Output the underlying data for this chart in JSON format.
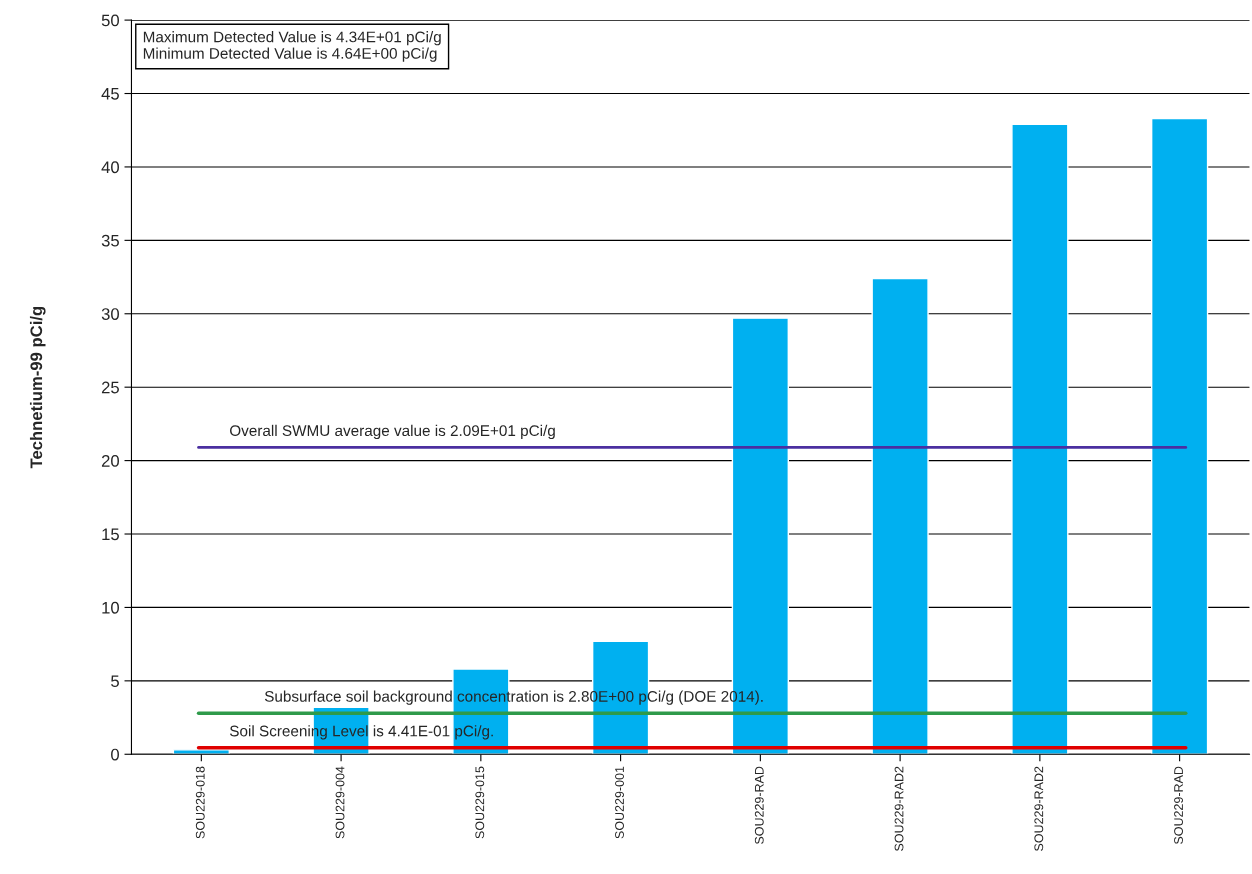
{
  "chart_data": {
    "type": "bar",
    "ylabel": "Technetium-99 pCi/g",
    "categories": [
      "SOU229-018",
      "SOU229-004",
      "SOU229-015",
      "SOU229-001",
      "SOU229-RAD",
      "SOU229-RAD2",
      "SOU229-RAD2",
      "SOU229-RAD"
    ],
    "values": [
      0.3,
      3.2,
      5.8,
      7.7,
      29.7,
      32.4,
      42.9,
      43.3
    ],
    "color": "#00b0f0",
    "ylim": [
      0,
      50
    ],
    "yticks": [
      0,
      5,
      10,
      15,
      20,
      25,
      30,
      35,
      40,
      45,
      50
    ],
    "grid": "y",
    "legend": false,
    "ref_lines": [
      {
        "axis": "y",
        "value": 20.9,
        "label": "Overall SWMU average value is 2.09E+01 pCi/g",
        "color": "#4b2fa0"
      },
      {
        "axis": "y",
        "value": 2.8,
        "label": "Subsurface soil background concentration is 2.80E+00 pCi/g (DOE 2014).",
        "color": "#2e9a4a"
      },
      {
        "axis": "y",
        "value": 0.441,
        "label": "Soil Screening Level is 4.41E-01 pCi/g.",
        "color": "#e00000"
      }
    ],
    "annotations": [
      "Maximum Detected Value is 4.34E+01 pCi/g\nMinimum Detected Value is 4.64E+00 pCi/g"
    ]
  }
}
